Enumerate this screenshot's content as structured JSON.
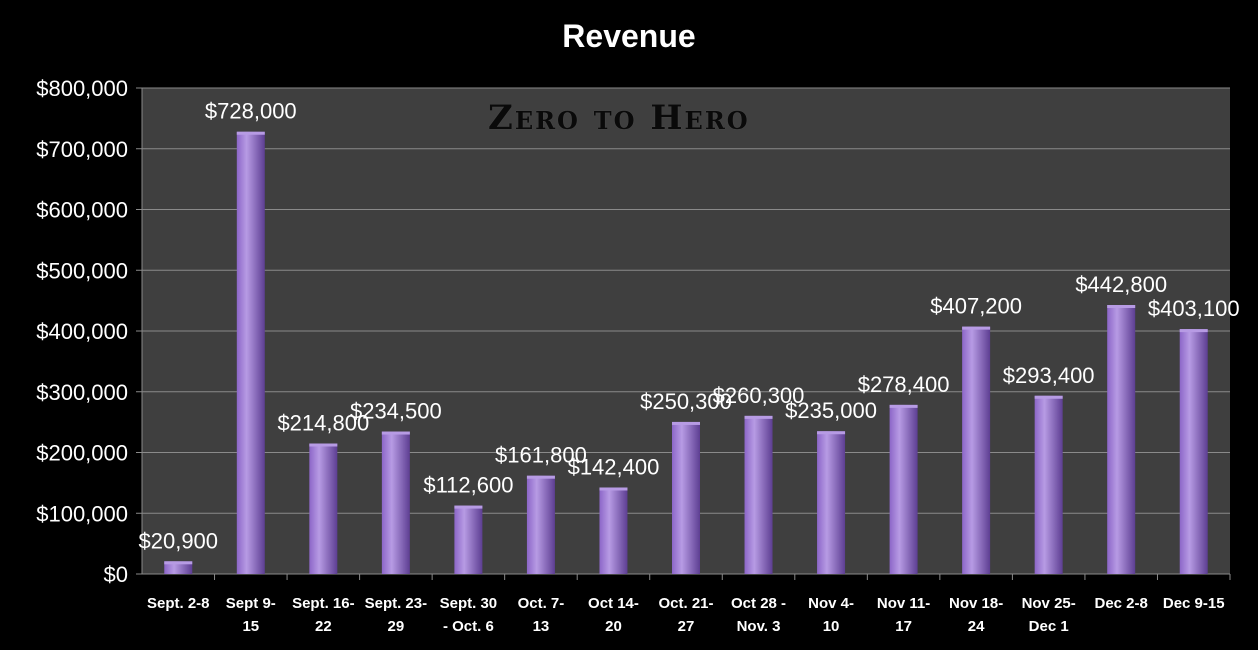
{
  "colors": {
    "background": "#000000",
    "plot_area": "#3f3f3f",
    "gridline": "#8a8a8a",
    "bar_light": "#b79be4",
    "bar_mid": "#8c66c8",
    "bar_dark": "#5d3e92",
    "text": "#ffffff"
  },
  "chart_data": {
    "type": "bar",
    "title": "Revenue",
    "watermark": "Zero to Hero",
    "xlabel": "",
    "ylabel": "",
    "ylim": [
      0,
      800000
    ],
    "grid": true,
    "legend": "none",
    "y_ticks": [
      0,
      100000,
      200000,
      300000,
      400000,
      500000,
      600000,
      700000,
      800000
    ],
    "y_tick_labels": [
      "$0",
      "$100,000",
      "$200,000",
      "$300,000",
      "$400,000",
      "$500,000",
      "$600,000",
      "$700,000",
      "$800,000"
    ],
    "categories": [
      [
        "Sept. 2-8"
      ],
      [
        "Sept 9-",
        "15"
      ],
      [
        "Sept. 16-",
        "22"
      ],
      [
        "Sept. 23-",
        "29"
      ],
      [
        "Sept. 30",
        "- Oct. 6"
      ],
      [
        "Oct. 7-",
        "13"
      ],
      [
        "Oct 14-",
        "20"
      ],
      [
        "Oct. 21-",
        "27"
      ],
      [
        "Oct 28 -",
        "Nov. 3"
      ],
      [
        "Nov 4-",
        "10"
      ],
      [
        "Nov 11-",
        "17"
      ],
      [
        "Nov 18-",
        "24"
      ],
      [
        "Nov 25-",
        "Dec 1"
      ],
      [
        "Dec 2-8"
      ],
      [
        "Dec 9-15"
      ]
    ],
    "values": [
      20900,
      728000,
      214800,
      234500,
      112600,
      161800,
      142400,
      250300,
      260300,
      235000,
      278400,
      407200,
      293400,
      442800,
      403100
    ],
    "data_labels": [
      "$20,900",
      "$728,000",
      "$214,800",
      "$234,500",
      "$112,600",
      "$161,800",
      "$142,400",
      "$250,300",
      "$260,300",
      "$235,000",
      "$278,400",
      "$407,200",
      "$293,400",
      "$442,800",
      "$403,100"
    ]
  }
}
